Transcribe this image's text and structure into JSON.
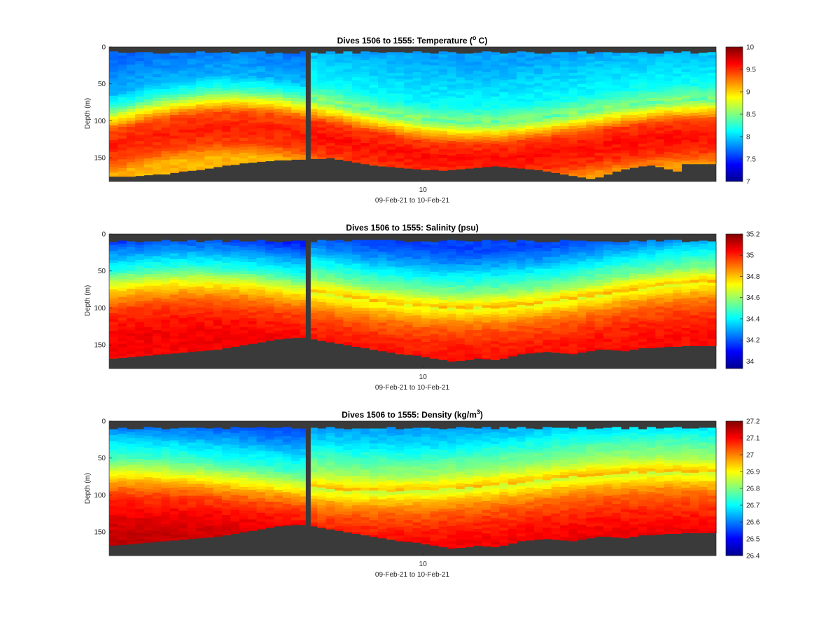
{
  "figure": {
    "background": "#ffffff",
    "bottom_fill_color": "#3a3a3a",
    "colormap": "jet"
  },
  "chart_data": [
    {
      "type": "heatmap",
      "title": "Dives 1506 to 1555: Temperature (",
      "title_sup": "o",
      "title_end": " C)",
      "xlabel": "09-Feb-21 to 10-Feb-21",
      "ylabel": "Depth (m)",
      "x_ticks": [
        "10"
      ],
      "y_ticks": [
        0,
        50,
        100,
        150
      ],
      "ylim": [
        0,
        182
      ],
      "y_reversed": true,
      "dives": [
        1506,
        1555
      ],
      "gap_after_dive_index": 22,
      "clim": [
        7,
        10
      ],
      "colorbar_ticks": [
        "7",
        "7.5",
        "8",
        "8.5",
        "9",
        "9.5",
        "10"
      ],
      "surface_gap_m": 6,
      "bottom_depth_m": [
        175,
        175,
        175,
        174,
        173,
        172,
        172,
        170,
        168,
        167,
        166,
        164,
        162,
        160,
        159,
        157,
        156,
        155,
        154,
        153,
        153,
        152,
        152,
        151,
        151,
        150,
        152,
        154,
        156,
        158,
        160,
        161,
        162,
        163,
        164,
        165,
        166,
        166,
        167,
        166,
        165,
        164,
        163,
        162,
        161,
        162,
        163,
        164,
        165,
        166,
        168,
        170,
        172,
        174,
        176,
        178,
        176,
        172,
        168,
        165,
        163,
        161,
        160,
        162,
        165,
        168,
        158,
        158,
        158,
        158
      ],
      "levels_depth_m": [
        0,
        10,
        30,
        50,
        70,
        85,
        95,
        105,
        120,
        140,
        160,
        182
      ],
      "profile_depth_m": [
        0,
        20,
        40,
        60,
        80,
        95,
        110,
        130,
        150,
        170
      ],
      "profile_values": [
        7.6,
        7.7,
        7.8,
        7.9,
        8.3,
        8.9,
        9.4,
        9.55,
        9.45,
        9.1
      ]
    },
    {
      "type": "heatmap",
      "title": "Dives 1506 to 1555: Salinity (psu)",
      "xlabel": "09-Feb-21 to 10-Feb-21",
      "ylabel": "Depth (m)",
      "x_ticks": [
        "10"
      ],
      "y_ticks": [
        0,
        50,
        100,
        150
      ],
      "ylim": [
        0,
        182
      ],
      "y_reversed": true,
      "dives": [
        1506,
        1555
      ],
      "gap_after_dive_index": 22,
      "clim": [
        33.93,
        35.2
      ],
      "colorbar_ticks": [
        "34",
        "34.2",
        "34.4",
        "34.6",
        "34.8",
        "35",
        "35.2"
      ],
      "colorbar_tick_values": [
        34.0,
        34.2,
        34.4,
        34.6,
        34.8,
        35.0,
        35.2
      ],
      "surface_gap_m": 8,
      "bottom_depth_m": [
        168,
        167,
        166,
        165,
        164,
        163,
        162,
        161,
        160,
        159,
        158,
        157,
        156,
        154,
        152,
        150,
        148,
        146,
        144,
        142,
        141,
        140,
        140,
        142,
        144,
        146,
        148,
        150,
        152,
        154,
        156,
        158,
        160,
        162,
        163,
        164,
        166,
        168,
        170,
        172,
        171,
        170,
        168,
        169,
        170,
        168,
        165,
        162,
        161,
        160,
        159,
        160,
        161,
        162,
        160,
        158,
        156,
        156,
        157,
        158,
        156,
        154,
        154,
        153,
        152,
        152,
        151,
        151,
        151,
        151
      ],
      "profile_depth_m": [
        0,
        20,
        40,
        60,
        80,
        95,
        110,
        130,
        150,
        170
      ],
      "profile_values": [
        34.05,
        34.15,
        34.3,
        34.45,
        34.7,
        34.85,
        34.95,
        35.02,
        35.05,
        35.05
      ]
    },
    {
      "type": "heatmap",
      "title": "Dives 1506 to 1555: Density (kg/m",
      "title_sup": "3",
      "title_end": ")",
      "xlabel": "09-Feb-21 to 10-Feb-21",
      "ylabel": "Depth (m)",
      "x_ticks": [
        "10"
      ],
      "y_ticks": [
        0,
        50,
        100,
        150
      ],
      "ylim": [
        0,
        182
      ],
      "y_reversed": true,
      "dives": [
        1506,
        1555
      ],
      "gap_after_dive_index": 22,
      "clim": [
        26.4,
        27.2
      ],
      "colorbar_ticks": [
        "26.4",
        "26.5",
        "26.6",
        "26.7",
        "26.8",
        "26.9",
        "27",
        "27.1",
        "27.2"
      ],
      "surface_gap_m": 8,
      "bottom_depth_m": [
        168,
        167,
        166,
        165,
        164,
        163,
        162,
        161,
        160,
        159,
        158,
        157,
        156,
        154,
        152,
        150,
        148,
        146,
        144,
        142,
        141,
        140,
        140,
        142,
        144,
        146,
        148,
        150,
        152,
        154,
        156,
        158,
        160,
        162,
        163,
        164,
        166,
        168,
        170,
        172,
        171,
        170,
        168,
        169,
        170,
        168,
        165,
        162,
        161,
        160,
        159,
        160,
        161,
        162,
        160,
        158,
        156,
        156,
        157,
        158,
        156,
        154,
        154,
        153,
        152,
        152,
        151,
        151,
        151,
        151
      ],
      "profile_depth_m": [
        0,
        20,
        40,
        60,
        80,
        95,
        110,
        130,
        150,
        170
      ],
      "profile_values": [
        26.55,
        26.6,
        26.68,
        26.75,
        26.88,
        26.98,
        27.05,
        27.1,
        27.13,
        27.15
      ]
    }
  ]
}
